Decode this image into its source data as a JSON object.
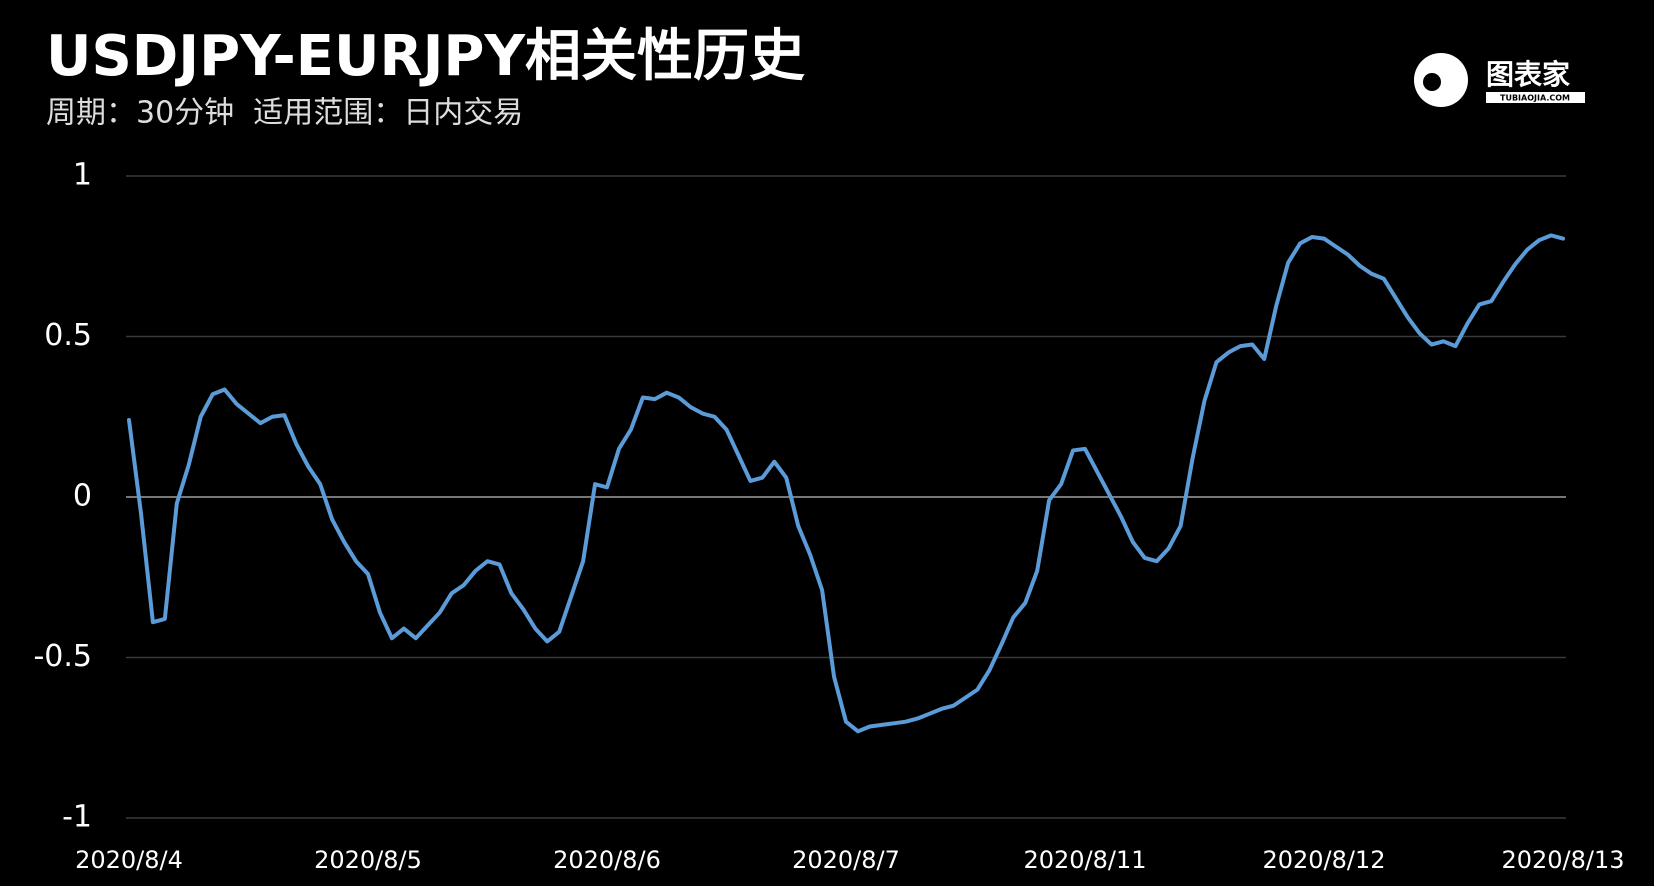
{
  "chart_data": {
    "type": "line",
    "title": "USDJPY-EURJPY相关性历史",
    "subtitle": "周期：30分钟  适用范围：日内交易",
    "categories": [
      "2020/8/4",
      null,
      null,
      null,
      null,
      null,
      null,
      null,
      null,
      null,
      null,
      null,
      null,
      null,
      null,
      null,
      null,
      null,
      null,
      null,
      "2020/8/5",
      null,
      null,
      null,
      null,
      null,
      null,
      null,
      null,
      null,
      null,
      null,
      null,
      null,
      null,
      null,
      null,
      null,
      null,
      null,
      "2020/8/6",
      null,
      null,
      null,
      null,
      null,
      null,
      null,
      null,
      null,
      null,
      null,
      null,
      null,
      null,
      null,
      null,
      null,
      null,
      null,
      "2020/8/7",
      null,
      null,
      null,
      null,
      null,
      null,
      null,
      null,
      null,
      null,
      null,
      null,
      null,
      null,
      null,
      null,
      null,
      null,
      null,
      "2020/8/11",
      null,
      null,
      null,
      null,
      null,
      null,
      null,
      null,
      null,
      null,
      null,
      null,
      null,
      null,
      null,
      null,
      null,
      null,
      null,
      "2020/8/12",
      null,
      null,
      null,
      null,
      null,
      null,
      null,
      null,
      null,
      null,
      null,
      null,
      null,
      null,
      null,
      null,
      null,
      null,
      null,
      "2020/8/13"
    ],
    "values": [
      0.24,
      -0.05,
      -0.39,
      -0.38,
      -0.02,
      0.1,
      0.25,
      0.32,
      0.335,
      0.29,
      0.26,
      0.23,
      0.25,
      0.255,
      0.165,
      0.095,
      0.04,
      -0.07,
      -0.14,
      -0.2,
      -0.24,
      -0.36,
      -0.44,
      -0.41,
      -0.44,
      -0.4,
      -0.36,
      -0.3,
      -0.275,
      -0.23,
      -0.2,
      -0.21,
      -0.3,
      -0.35,
      -0.41,
      -0.45,
      -0.42,
      -0.31,
      -0.2,
      0.04,
      0.03,
      0.15,
      0.21,
      0.31,
      0.305,
      0.325,
      0.31,
      0.28,
      0.26,
      0.25,
      0.21,
      0.13,
      0.05,
      0.06,
      0.11,
      0.06,
      -0.09,
      -0.18,
      -0.29,
      -0.56,
      -0.7,
      -0.73,
      -0.715,
      -0.71,
      -0.705,
      -0.7,
      -0.69,
      -0.675,
      -0.66,
      -0.65,
      -0.625,
      -0.6,
      -0.54,
      -0.46,
      -0.375,
      -0.33,
      -0.23,
      -0.01,
      0.04,
      0.145,
      0.15,
      0.08,
      0.01,
      -0.06,
      -0.14,
      -0.19,
      -0.2,
      -0.16,
      -0.09,
      0.12,
      0.3,
      0.42,
      0.45,
      0.47,
      0.475,
      0.43,
      0.595,
      0.73,
      0.79,
      0.81,
      0.805,
      0.78,
      0.755,
      0.72,
      0.695,
      0.68,
      0.62,
      0.56,
      0.51,
      0.475,
      0.485,
      0.47,
      0.54,
      0.6,
      0.61,
      0.67,
      0.725,
      0.77,
      0.8,
      0.815,
      0.805
    ],
    "color": "#5b9bd8",
    "ylim": [
      -1,
      1
    ],
    "yticks": [
      -1,
      -0.5,
      0,
      0.5,
      1
    ],
    "grid": true
  },
  "logo": {
    "name": "图表家",
    "site": "TUBIAOJIA.COM"
  }
}
